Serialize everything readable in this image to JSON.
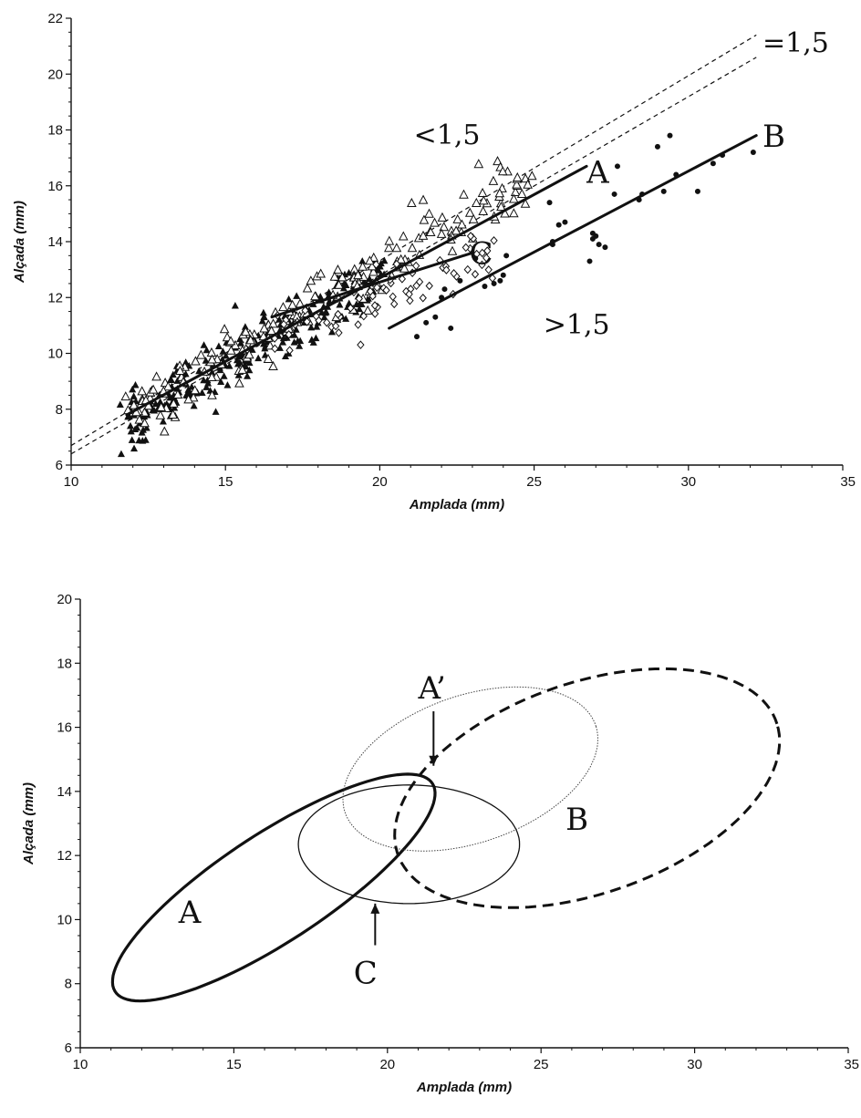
{
  "chart_data": [
    {
      "type": "scatter",
      "xlabel": "Amplada (mm)",
      "ylabel": "Alçada (mm)",
      "xlim": [
        10,
        35
      ],
      "ylim": [
        6,
        22
      ],
      "x_ticks": [
        10,
        15,
        20,
        25,
        30,
        35
      ],
      "y_ticks": [
        6,
        8,
        10,
        12,
        14,
        16,
        18,
        20,
        22
      ],
      "grid": false,
      "series": [
        {
          "marker": "filled-triangle",
          "cluster": {
            "x": [
              11.8,
              20.2
            ],
            "y": [
              7.6,
              12.8
            ],
            "slope": 0.62,
            "count": 260,
            "spread": 0.5
          }
        },
        {
          "marker": "open-triangle",
          "cluster": {
            "x": [
              12.0,
              24.8
            ],
            "y": [
              7.8,
              16.3
            ],
            "slope": 0.62,
            "count": 200,
            "spread": 0.55
          }
        },
        {
          "marker": "open-diamond",
          "cluster": {
            "x": [
              16.5,
              23.8
            ],
            "y": [
              10.6,
              13.8
            ],
            "slope": 0.45,
            "count": 70,
            "spread": 0.55
          }
        },
        {
          "marker": "filled-circle",
          "x": [
            21.2,
            21.5,
            21.8,
            22.0,
            22.1,
            22.3,
            22.6,
            23.1,
            23.4,
            23.7,
            23.9,
            24.0,
            24.1,
            25.5,
            25.6,
            25.8,
            26.0,
            25.6,
            26.8,
            26.9,
            27.0,
            27.1,
            27.3,
            26.9,
            27.6,
            27.7,
            28.4,
            28.5,
            29.0,
            29.2,
            29.4,
            29.6,
            30.3,
            30.8,
            31.1,
            32.1
          ],
          "y": [
            10.6,
            11.1,
            11.3,
            12.0,
            12.3,
            10.9,
            12.6,
            13.4,
            12.4,
            12.5,
            12.6,
            12.8,
            13.5,
            15.4,
            14.0,
            14.6,
            14.7,
            13.9,
            13.3,
            14.1,
            14.2,
            13.9,
            13.8,
            14.3,
            15.7,
            16.7,
            15.5,
            15.7,
            17.4,
            15.8,
            17.8,
            16.4,
            15.8,
            16.8,
            17.1,
            17.2
          ]
        }
      ],
      "fit_lines": [
        {
          "label": "A",
          "x": [
            11.8,
            26.7
          ],
          "y": [
            7.8,
            16.7
          ]
        },
        {
          "label": "B",
          "x": [
            20.3,
            32.2
          ],
          "y": [
            10.9,
            17.8
          ]
        },
        {
          "label": "C",
          "x": [
            16.5,
            19.0,
            21.0,
            23.0
          ],
          "y": [
            11.3,
            12.2,
            12.9,
            13.6
          ]
        }
      ],
      "reference_lines": [
        {
          "x": [
            10,
            32.2
          ],
          "y": [
            6.7,
            21.4
          ]
        },
        {
          "x": [
            10,
            32.2
          ],
          "y": [
            6.4,
            20.6
          ]
        }
      ],
      "annotations": [
        {
          "text": "=1,5",
          "x": 32.4,
          "y": 20.8
        },
        {
          "text": "<1,5",
          "x": 21.1,
          "y": 17.5
        },
        {
          "text": "A",
          "x": 26.7,
          "y": 16.1
        },
        {
          "text": "B",
          "x": 32.4,
          "y": 17.4
        },
        {
          "text": "C",
          "x": 22.9,
          "y": 13.2
        },
        {
          "text": ">1,5",
          "x": 25.3,
          "y": 10.7
        }
      ]
    },
    {
      "type": "scatter",
      "xlabel": "Amplada (mm)",
      "ylabel": "Alçada (mm)",
      "xlim": [
        10,
        35
      ],
      "ylim": [
        6,
        20
      ],
      "x_ticks": [
        10,
        15,
        20,
        25,
        30,
        35
      ],
      "y_ticks": [
        6,
        8,
        10,
        12,
        14,
        16,
        18,
        20
      ],
      "grid": false,
      "ellipses": [
        {
          "label": "A",
          "cx": 16.3,
          "cy": 11.0,
          "rx": 6.1,
          "ry": 1.7,
          "angle_deg": 32,
          "style": "thick"
        },
        {
          "label": "C",
          "cx": 20.7,
          "cy": 12.35,
          "rx": 3.6,
          "ry": 1.85,
          "angle_deg": 0,
          "style": "thin"
        },
        {
          "label": "A’",
          "cx": 22.7,
          "cy": 14.7,
          "rx": 4.3,
          "ry": 2.3,
          "angle_deg": 18,
          "style": "dotted"
        },
        {
          "label": "B",
          "cx": 26.5,
          "cy": 14.1,
          "rx": 6.5,
          "ry": 3.3,
          "angle_deg": 18,
          "style": "dashed"
        }
      ],
      "annotations": [
        {
          "text": "A’",
          "x": 21.0,
          "y": 16.9
        },
        {
          "text": "B",
          "x": 25.8,
          "y": 12.8
        },
        {
          "text": "A",
          "x": 13.2,
          "y": 9.9
        },
        {
          "text": "C",
          "x": 18.9,
          "y": 8.0
        }
      ],
      "arrows": [
        {
          "from": [
            21.5,
            16.5
          ],
          "to": [
            21.5,
            14.8
          ]
        },
        {
          "from": [
            19.6,
            9.2
          ],
          "to": [
            19.6,
            10.5
          ]
        }
      ]
    }
  ]
}
